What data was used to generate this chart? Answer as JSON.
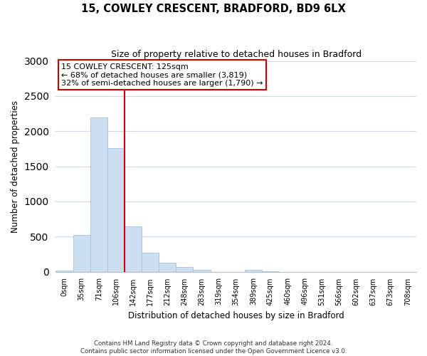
{
  "title": "15, COWLEY CRESCENT, BRADFORD, BD9 6LX",
  "subtitle": "Size of property relative to detached houses in Bradford",
  "xlabel": "Distribution of detached houses by size in Bradford",
  "ylabel": "Number of detached properties",
  "bar_labels": [
    "0sqm",
    "35sqm",
    "71sqm",
    "106sqm",
    "142sqm",
    "177sqm",
    "212sqm",
    "248sqm",
    "283sqm",
    "319sqm",
    "354sqm",
    "389sqm",
    "425sqm",
    "460sqm",
    "496sqm",
    "531sqm",
    "566sqm",
    "602sqm",
    "637sqm",
    "673sqm",
    "708sqm"
  ],
  "bar_values": [
    20,
    520,
    2200,
    1760,
    640,
    265,
    130,
    70,
    30,
    0,
    0,
    30,
    10,
    0,
    0,
    0,
    0,
    0,
    0,
    0,
    0
  ],
  "bar_color": "#ccdff0",
  "bar_edge_color": "#a8c8e8",
  "vline_color": "#cc0000",
  "vline_x_index": 3.5,
  "ylim": [
    0,
    3000
  ],
  "yticks": [
    0,
    500,
    1000,
    1500,
    2000,
    2500,
    3000
  ],
  "annotation_title": "15 COWLEY CRESCENT: 125sqm",
  "annotation_line1": "← 68% of detached houses are smaller (3,819)",
  "annotation_line2": "32% of semi-detached houses are larger (1,790) →",
  "annotation_box_color": "#ffffff",
  "annotation_box_edge": "#cc0000",
  "footer_line1": "Contains HM Land Registry data © Crown copyright and database right 2024.",
  "footer_line2": "Contains public sector information licensed under the Open Government Licence v3.0.",
  "background_color": "#ffffff",
  "grid_color": "#ccd8e8"
}
